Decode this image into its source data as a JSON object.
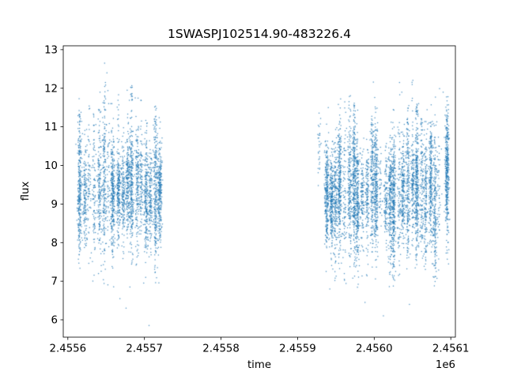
{
  "chart_data": {
    "type": "scatter",
    "title": "1SWASPJ102514.90-483226.4",
    "xlabel": "time",
    "ylabel": "flux",
    "x_offset_label": "1e6",
    "xlim": [
      2455594,
      2456106
    ],
    "ylim": [
      5.55,
      13.1
    ],
    "xticks": {
      "values": [
        2455600,
        2455700,
        2455800,
        2455900,
        2456000,
        2456100
      ],
      "labels": [
        "2.4556",
        "2.4557",
        "2.4558",
        "2.4559",
        "2.4560",
        "2.4561"
      ]
    },
    "yticks": {
      "values": [
        6,
        7,
        8,
        9,
        10,
        11,
        12,
        13
      ],
      "labels": [
        "6",
        "7",
        "8",
        "9",
        "10",
        "11",
        "12",
        "13"
      ]
    },
    "grid": false,
    "legend": "none",
    "marker": {
      "color": "#1f77b4",
      "radius": 0.75,
      "opacity": 0.8
    },
    "summary": {
      "description": "Dense nightly columns of photometric flux measurements in two time groups separated by a gap; core flux 8-11, lows to ~5.85, highs to ~12.65",
      "n_points_approx": 8000,
      "time_groups": [
        [
          2455613,
          2455724
        ],
        [
          2455922,
          2456100
        ]
      ]
    },
    "point_generator": {
      "seed": 987654321,
      "groups": [
        {
          "x_min": 2455613,
          "x_max": 2455724,
          "columns": 18,
          "pts_min": 70,
          "pts_max": 300,
          "y_mean": 9.35,
          "y_center_jitter": 0.3,
          "y_sigma_min": 0.5,
          "y_sigma_max": 0.95,
          "sparse_prob": 0.12,
          "tail_up_prob": 0.4,
          "tail_down_prob": 0.3
        },
        {
          "x_min": 2455935,
          "x_max": 2456088,
          "columns": 26,
          "pts_min": 70,
          "pts_max": 300,
          "y_mean": 9.3,
          "y_center_jitter": 0.3,
          "y_sigma_min": 0.5,
          "y_sigma_max": 1.0,
          "sparse_prob": 0.1,
          "tail_up_prob": 0.45,
          "tail_down_prob": 0.35
        }
      ],
      "feature_columns": [
        {
          "x": 2455928,
          "n": 30,
          "y_center": 10.5,
          "y_sigma": 0.45
        },
        {
          "x": 2456095,
          "n": 380,
          "y_center": 9.85,
          "y_sigma": 0.85
        }
      ],
      "outliers_high": [
        [
          2455648,
          12.65
        ],
        [
          2455651,
          12.4
        ],
        [
          2455649,
          12.15
        ],
        [
          2455642,
          11.9
        ],
        [
          2455688,
          11.75
        ],
        [
          2455656,
          11.6
        ],
        [
          2456033,
          12.15
        ],
        [
          2456036,
          11.9
        ],
        [
          2456090,
          11.9
        ],
        [
          2456058,
          11.6
        ],
        [
          2455940,
          11.5
        ]
      ],
      "outliers_low": [
        [
          2455706,
          5.85
        ],
        [
          2455676,
          6.3
        ],
        [
          2455668,
          6.55
        ],
        [
          2455699,
          6.95
        ],
        [
          2455988,
          6.45
        ],
        [
          2456012,
          6.1
        ],
        [
          2456046,
          6.4
        ],
        [
          2455961,
          7.05
        ],
        [
          2456097,
          7.45
        ],
        [
          2455942,
          6.8
        ]
      ]
    }
  }
}
